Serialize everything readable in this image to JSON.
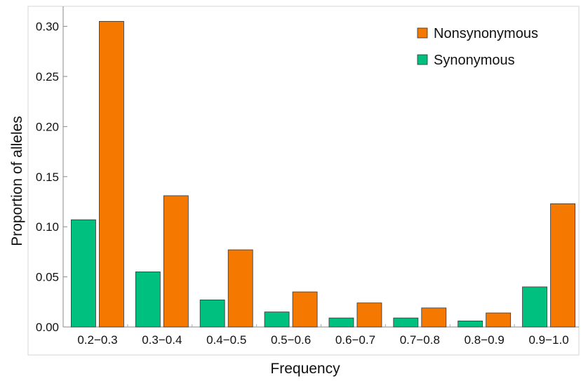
{
  "chart_data": {
    "type": "bar",
    "xlabel": "Frequency",
    "ylabel": "Proportion of alleles",
    "categories": [
      "0.2−0.3",
      "0.3−0.4",
      "0.4−0.5",
      "0.5−0.6",
      "0.6−0.7",
      "0.7−0.8",
      "0.8−0.9",
      "0.9−1.0"
    ],
    "series": [
      {
        "name": "Synonymous",
        "color": "#00c07f",
        "values": [
          0.107,
          0.055,
          0.027,
          0.015,
          0.009,
          0.009,
          0.006,
          0.04
        ]
      },
      {
        "name": "Nonsynonymous",
        "color": "#f57800",
        "values": [
          0.305,
          0.131,
          0.077,
          0.035,
          0.024,
          0.019,
          0.014,
          0.123
        ]
      }
    ],
    "ylim": [
      0,
      0.32
    ],
    "yticks": [
      "0.00",
      "0.05",
      "0.10",
      "0.15",
      "0.20",
      "0.25",
      "0.30"
    ],
    "grid": false,
    "legend": {
      "position": "top-right",
      "entries": [
        {
          "label": "Nonsynonymous",
          "color": "#f57800"
        },
        {
          "label": "Synonymous",
          "color": "#00c07f"
        }
      ]
    }
  }
}
